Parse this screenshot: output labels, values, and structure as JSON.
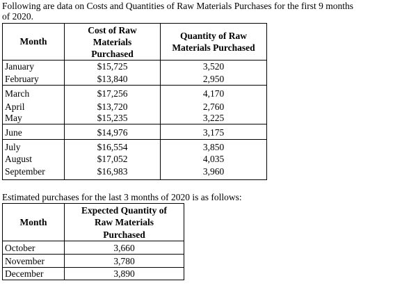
{
  "intro": {
    "line1": "Following are data on Costs and Quantities of Raw Materials Purchases for the first 9 months",
    "line2": "of 2020."
  },
  "table1": {
    "headers": {
      "month": "Month",
      "cost_line1": "Cost of Raw",
      "cost_line2": "Materials",
      "cost_line3": "Purchased",
      "qty_line1": "Quantity of Raw",
      "qty_line2": "Materials Purchased"
    },
    "rows": [
      {
        "month": "January",
        "cost": "$15,725",
        "qty": "3,520"
      },
      {
        "month": "February",
        "cost": "$13,840",
        "qty": "2,950"
      },
      {
        "month": "March",
        "cost": "$17,256",
        "qty": "4,170"
      },
      {
        "month": "April",
        "cost": "$13,720",
        "qty": "2,760"
      },
      {
        "month": "May",
        "cost": "$15,235",
        "qty": "3,225"
      },
      {
        "month": "June",
        "cost": "$14,976",
        "qty": "3,175"
      },
      {
        "month": "July",
        "cost": "$16,554",
        "qty": "3,850"
      },
      {
        "month": "August",
        "cost": "$17,052",
        "qty": "4,035"
      },
      {
        "month": "September",
        "cost": "$16,983",
        "qty": "3,960"
      }
    ]
  },
  "estimate": {
    "text": "Estimated purchases for the last 3 months of 2020 is as follows:"
  },
  "table2": {
    "headers": {
      "month": "Month",
      "qty_line1": "Expected Quantity of",
      "qty_line2": "Raw Materials",
      "qty_line3": "Purchased"
    },
    "rows": [
      {
        "month": "October",
        "qty": "3,660"
      },
      {
        "month": "November",
        "qty": "3,780"
      },
      {
        "month": "December",
        "qty": "3,890"
      }
    ]
  }
}
